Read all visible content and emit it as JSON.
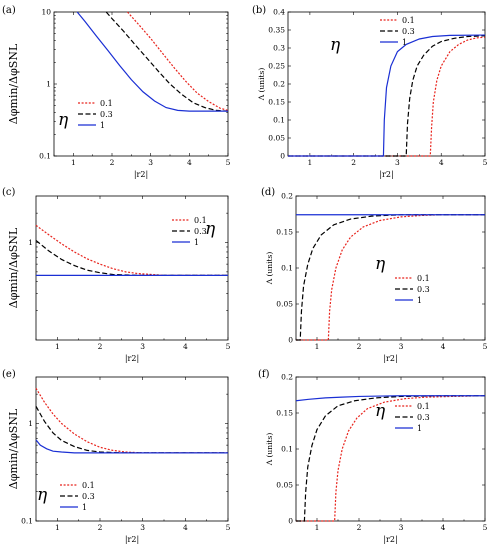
{
  "colors": {
    "eta_0.1": "#e8231c",
    "eta_0.3": "#000000",
    "eta_1": "#1a2fd4"
  },
  "chart_data": [
    {
      "panel": "(a)",
      "type": "line",
      "yscale": "log",
      "xlim": [
        0.5,
        5
      ],
      "ylim": [
        0.1,
        10
      ],
      "xticks": [
        "1",
        "2",
        "3",
        "4",
        "5"
      ],
      "yticks": [
        "0.1",
        "1",
        "10"
      ],
      "xlabel": "|r2|",
      "ylabel": "Δφmin/ΔφSNL",
      "legend_symbol": "η",
      "legend": [
        "0.1",
        "0.3",
        "1"
      ],
      "legend_placement": "bottom-left",
      "series": [
        {
          "name": "0.1",
          "x": [
            2.4,
            2.7,
            3.0,
            3.3,
            3.6,
            3.9,
            4.2,
            4.5,
            4.8,
            5.0
          ],
          "y": [
            10,
            6.6,
            4.3,
            2.7,
            1.7,
            1.1,
            0.75,
            0.57,
            0.46,
            0.43
          ]
        },
        {
          "name": "0.3",
          "x": [
            1.85,
            2.0,
            2.3,
            2.6,
            2.9,
            3.2,
            3.5,
            3.8,
            4.1,
            4.4,
            4.7,
            5.0
          ],
          "y": [
            10,
            8.1,
            5.4,
            3.5,
            2.3,
            1.5,
            1.0,
            0.72,
            0.55,
            0.47,
            0.43,
            0.42
          ]
        },
        {
          "name": "1",
          "x": [
            1.1,
            1.3,
            1.6,
            1.9,
            2.2,
            2.5,
            2.8,
            3.1,
            3.4,
            3.7,
            4.0,
            4.5,
            5.0
          ],
          "y": [
            10,
            7.4,
            4.6,
            2.9,
            1.8,
            1.15,
            0.78,
            0.58,
            0.47,
            0.43,
            0.42,
            0.42,
            0.42
          ]
        }
      ]
    },
    {
      "panel": "(b)",
      "type": "line",
      "xlim": [
        0.5,
        5
      ],
      "ylim": [
        0,
        0.4
      ],
      "xticks": [
        "1",
        "2",
        "3",
        "4",
        "5"
      ],
      "yticks": [
        "0",
        "0.05",
        "0.1",
        "0.15",
        "0.2",
        "0.25",
        "0.3",
        "0.35",
        "0.4"
      ],
      "xlabel": "|r2|",
      "ylabel": "Λ (units)",
      "legend_symbol": "η",
      "legend": [
        "0.1",
        "0.3",
        "1"
      ],
      "legend_placement": "top-left",
      "series": [
        {
          "name": "0.1",
          "x": [
            0.5,
            3.75,
            3.78,
            3.82,
            3.9,
            4.0,
            4.2,
            4.4,
            4.6,
            4.8,
            5.0
          ],
          "y": [
            0,
            0,
            0.08,
            0.15,
            0.21,
            0.25,
            0.29,
            0.31,
            0.322,
            0.328,
            0.33
          ]
        },
        {
          "name": "0.3",
          "x": [
            0.5,
            3.2,
            3.23,
            3.28,
            3.35,
            3.45,
            3.6,
            3.8,
            4.0,
            4.3,
            4.6,
            5.0
          ],
          "y": [
            0,
            0,
            0.09,
            0.16,
            0.21,
            0.25,
            0.28,
            0.305,
            0.318,
            0.327,
            0.332,
            0.334
          ]
        },
        {
          "name": "1",
          "x": [
            0.5,
            2.68,
            2.7,
            2.75,
            2.85,
            3.0,
            3.2,
            3.5,
            3.8,
            4.2,
            5.0
          ],
          "y": [
            0,
            0,
            0.1,
            0.19,
            0.25,
            0.29,
            0.31,
            0.325,
            0.332,
            0.335,
            0.336
          ]
        }
      ]
    },
    {
      "panel": "(c)",
      "type": "line",
      "yscale": "log",
      "xlim": [
        0.5,
        5
      ],
      "ylim": [
        0.1,
        3
      ],
      "xticks": [
        "1",
        "2",
        "3",
        "4",
        "5"
      ],
      "yticks": [
        "1"
      ],
      "xlabel": "|r2|",
      "ylabel": "Δφmin/ΔφSNL",
      "legend_symbol": "η",
      "legend": [
        "0.1",
        "0.3",
        "1"
      ],
      "legend_placement": "top-right",
      "series": [
        {
          "name": "0.1",
          "x": [
            0.5,
            0.8,
            1.1,
            1.4,
            1.7,
            2.0,
            2.3,
            2.6,
            2.9,
            3.2,
            3.5,
            4.0,
            5.0
          ],
          "y": [
            1.5,
            1.2,
            0.97,
            0.8,
            0.68,
            0.6,
            0.54,
            0.5,
            0.48,
            0.47,
            0.46,
            0.46,
            0.46
          ]
        },
        {
          "name": "0.3",
          "x": [
            0.5,
            0.8,
            1.1,
            1.4,
            1.7,
            2.0,
            2.3,
            2.6,
            3.0,
            3.5,
            5.0
          ],
          "y": [
            1.05,
            0.82,
            0.67,
            0.58,
            0.52,
            0.49,
            0.47,
            0.465,
            0.46,
            0.46,
            0.46
          ]
        },
        {
          "name": "1",
          "x": [
            0.5,
            5.0
          ],
          "y": [
            0.46,
            0.46
          ]
        }
      ]
    },
    {
      "panel": "(d)",
      "type": "line",
      "xlim": [
        0.5,
        5
      ],
      "ylim": [
        0,
        0.2
      ],
      "xticks": [
        "1",
        "2",
        "3",
        "4",
        "5"
      ],
      "yticks": [
        "0",
        "0.05",
        "0.1",
        "0.15",
        "0.2"
      ],
      "xlabel": "|r2|",
      "ylabel": "Λ (units)",
      "legend_symbol": "η",
      "legend": [
        "0.1",
        "0.3",
        "1"
      ],
      "legend_placement": "right",
      "series": [
        {
          "name": "0.1",
          "x": [
            0.5,
            1.27,
            1.3,
            1.35,
            1.45,
            1.6,
            1.8,
            2.1,
            2.5,
            3.0,
            3.5,
            4.0,
            5.0
          ],
          "y": [
            0,
            0,
            0.04,
            0.07,
            0.1,
            0.125,
            0.143,
            0.157,
            0.166,
            0.171,
            0.173,
            0.174,
            0.174
          ]
        },
        {
          "name": "0.3",
          "x": [
            0.5,
            0.6,
            0.63,
            0.68,
            0.78,
            0.9,
            1.1,
            1.4,
            1.8,
            2.3,
            3.0,
            4.0,
            5.0
          ],
          "y": [
            0,
            0,
            0.04,
            0.075,
            0.105,
            0.127,
            0.146,
            0.16,
            0.168,
            0.172,
            0.174,
            0.174,
            0.174
          ]
        },
        {
          "name": "1",
          "x": [
            0.5,
            5.0
          ],
          "y": [
            0.174,
            0.174
          ]
        }
      ]
    },
    {
      "panel": "(e)",
      "type": "line",
      "yscale": "log",
      "xlim": [
        0.5,
        5
      ],
      "ylim": [
        0.1,
        3
      ],
      "xticks": [
        "1",
        "2",
        "3",
        "4",
        "5"
      ],
      "yticks": [
        "0.1",
        "1"
      ],
      "xlabel": "|r2|",
      "ylabel": "Δφmin/ΔφSNL",
      "legend_symbol": "η",
      "legend": [
        "0.1",
        "0.3",
        "1"
      ],
      "legend_placement": "bottom-left",
      "series": [
        {
          "name": "0.1",
          "x": [
            0.5,
            0.7,
            0.9,
            1.1,
            1.4,
            1.7,
            2.0,
            2.3,
            2.6,
            3.0,
            3.5,
            4.0,
            5.0
          ],
          "y": [
            2.3,
            1.65,
            1.25,
            1.0,
            0.78,
            0.65,
            0.57,
            0.53,
            0.51,
            0.5,
            0.5,
            0.5,
            0.5
          ]
        },
        {
          "name": "0.3",
          "x": [
            0.5,
            0.7,
            0.9,
            1.1,
            1.4,
            1.7,
            2.0,
            2.5,
            3.0,
            5.0
          ],
          "y": [
            1.5,
            1.05,
            0.8,
            0.67,
            0.58,
            0.53,
            0.51,
            0.5,
            0.5,
            0.5
          ]
        },
        {
          "name": "1",
          "x": [
            0.5,
            0.6,
            0.75,
            0.9,
            1.1,
            1.4,
            1.8,
            2.5,
            5.0
          ],
          "y": [
            0.68,
            0.6,
            0.55,
            0.52,
            0.51,
            0.5,
            0.5,
            0.5,
            0.5
          ]
        }
      ]
    },
    {
      "panel": "(f)",
      "type": "line",
      "xlim": [
        0.5,
        5
      ],
      "ylim": [
        0,
        0.2
      ],
      "xticks": [
        "1",
        "2",
        "3",
        "4",
        "5"
      ],
      "yticks": [
        "0",
        "0.05",
        "0.1",
        "0.15",
        "0.2"
      ],
      "xlabel": "|r2|",
      "ylabel": "Λ (units)",
      "legend_symbol": "η",
      "legend": [
        "0.1",
        "0.3",
        "1"
      ],
      "legend_placement": "right",
      "series": [
        {
          "name": "0.1",
          "x": [
            0.5,
            1.42,
            1.45,
            1.5,
            1.6,
            1.75,
            1.95,
            2.2,
            2.6,
            3.1,
            3.6,
            4.2,
            5.0
          ],
          "y": [
            0,
            0,
            0.04,
            0.07,
            0.1,
            0.125,
            0.143,
            0.156,
            0.165,
            0.17,
            0.172,
            0.173,
            0.174
          ]
        },
        {
          "name": "0.3",
          "x": [
            0.5,
            0.7,
            0.73,
            0.78,
            0.88,
            1.0,
            1.2,
            1.5,
            1.9,
            2.4,
            3.0,
            4.0,
            5.0
          ],
          "y": [
            0,
            0,
            0.04,
            0.075,
            0.105,
            0.127,
            0.146,
            0.16,
            0.167,
            0.171,
            0.173,
            0.174,
            0.174
          ]
        },
        {
          "name": "1",
          "x": [
            0.5,
            0.8,
            1.2,
            1.6,
            2.0,
            2.5,
            3.0,
            3.5,
            4.0,
            5.0
          ],
          "y": [
            0.167,
            0.169,
            0.171,
            0.172,
            0.173,
            0.1735,
            0.174,
            0.174,
            0.174,
            0.174
          ]
        }
      ]
    }
  ]
}
